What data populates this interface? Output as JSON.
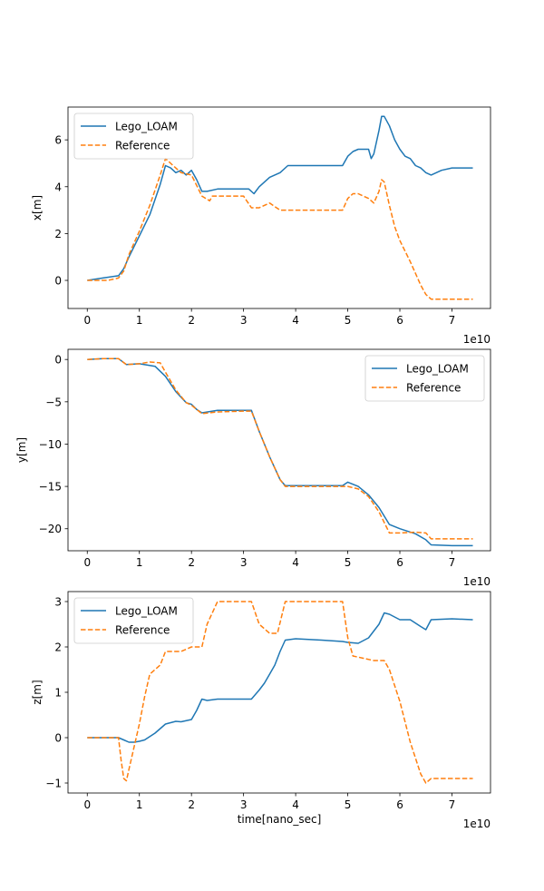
{
  "chart_data": [
    {
      "type": "line",
      "ylabel": "x[m]",
      "xlabel": "",
      "offset_text": "1e10",
      "xlim": [
        -0.37,
        7.74
      ],
      "ylim": [
        -1.2,
        7.4
      ],
      "xticks": [
        0,
        1,
        2,
        3,
        4,
        5,
        6,
        7
      ],
      "yticks": [
        0,
        2,
        4,
        6
      ],
      "legend": "upper-left",
      "series": [
        {
          "name": "Lego_LOAM",
          "color": "#1f77b4",
          "dash": "solid",
          "x": [
            0,
            0.3,
            0.6,
            0.7,
            0.8,
            1.0,
            1.2,
            1.4,
            1.5,
            1.6,
            1.7,
            1.8,
            1.9,
            2.0,
            2.1,
            2.2,
            2.3,
            2.5,
            2.8,
            3.1,
            3.2,
            3.3,
            3.5,
            3.7,
            3.85,
            4.0,
            4.3,
            4.6,
            4.9,
            5.0,
            5.1,
            5.2,
            5.3,
            5.4,
            5.45,
            5.5,
            5.6,
            5.65,
            5.7,
            5.8,
            5.9,
            6.0,
            6.1,
            6.2,
            6.3,
            6.4,
            6.5,
            6.6,
            6.8,
            7.0,
            7.2,
            7.4
          ],
          "y": [
            0,
            0.1,
            0.2,
            0.5,
            1.0,
            1.9,
            2.8,
            4.1,
            4.9,
            4.8,
            4.6,
            4.7,
            4.5,
            4.7,
            4.3,
            3.8,
            3.8,
            3.9,
            3.9,
            3.9,
            3.7,
            4.0,
            4.4,
            4.6,
            4.9,
            4.9,
            4.9,
            4.9,
            4.9,
            5.3,
            5.5,
            5.6,
            5.6,
            5.6,
            5.2,
            5.4,
            6.4,
            7.0,
            7.0,
            6.6,
            6.0,
            5.6,
            5.3,
            5.2,
            4.9,
            4.8,
            4.6,
            4.5,
            4.7,
            4.8,
            4.8,
            4.8
          ]
        },
        {
          "name": "Reference",
          "color": "#ff7f0e",
          "dash": "dashed",
          "x": [
            0,
            0.4,
            0.6,
            0.7,
            0.8,
            1.0,
            1.2,
            1.4,
            1.5,
            1.6,
            1.8,
            2.0,
            2.2,
            2.35,
            2.4,
            2.6,
            3.0,
            3.15,
            3.3,
            3.5,
            3.7,
            4.0,
            4.5,
            4.9,
            5.0,
            5.1,
            5.2,
            5.3,
            5.4,
            5.5,
            5.6,
            5.65,
            5.7,
            5.8,
            5.9,
            6.0,
            6.2,
            6.4,
            6.5,
            6.6,
            7.0,
            7.4
          ],
          "y": [
            0,
            0,
            0.1,
            0.4,
            1.1,
            2.1,
            3.2,
            4.5,
            5.2,
            5.0,
            4.6,
            4.5,
            3.6,
            3.4,
            3.6,
            3.6,
            3.6,
            3.1,
            3.1,
            3.3,
            3.0,
            3.0,
            3.0,
            3.0,
            3.5,
            3.7,
            3.7,
            3.6,
            3.5,
            3.3,
            3.8,
            4.3,
            4.2,
            3.2,
            2.3,
            1.7,
            0.8,
            -0.2,
            -0.6,
            -0.8,
            -0.8,
            -0.8
          ]
        }
      ]
    },
    {
      "type": "line",
      "ylabel": "y[m]",
      "xlabel": "",
      "offset_text": "1e10",
      "xlim": [
        -0.37,
        7.74
      ],
      "ylim": [
        -22.6,
        1.2
      ],
      "xticks": [
        0,
        1,
        2,
        3,
        4,
        5,
        6,
        7
      ],
      "yticks": [
        0,
        -5,
        -10,
        -15,
        -20
      ],
      "legend": "upper-right",
      "series": [
        {
          "name": "Lego_LOAM",
          "color": "#1f77b4",
          "dash": "solid",
          "x": [
            0,
            0.3,
            0.6,
            0.75,
            1.0,
            1.3,
            1.5,
            1.7,
            1.9,
            2.0,
            2.1,
            2.2,
            2.5,
            3.0,
            3.15,
            3.3,
            3.5,
            3.7,
            3.8,
            4.0,
            4.5,
            4.9,
            5.0,
            5.2,
            5.4,
            5.6,
            5.8,
            6.0,
            6.3,
            6.5,
            6.6,
            7.0,
            7.4
          ],
          "y": [
            0,
            0.1,
            0.1,
            -0.6,
            -0.5,
            -0.8,
            -2.0,
            -3.8,
            -5.1,
            -5.3,
            -5.9,
            -6.3,
            -6.0,
            -6.0,
            -6.0,
            -8.5,
            -11.5,
            -14.2,
            -14.9,
            -14.9,
            -14.9,
            -14.9,
            -14.5,
            -15.0,
            -16.0,
            -17.5,
            -19.5,
            -20.0,
            -20.6,
            -21.3,
            -21.9,
            -22.0,
            -22.0
          ]
        },
        {
          "name": "Reference",
          "color": "#ff7f0e",
          "dash": "dashed",
          "x": [
            0,
            0.3,
            0.6,
            0.75,
            1.0,
            1.2,
            1.4,
            1.5,
            1.7,
            1.9,
            2.0,
            2.1,
            2.2,
            2.5,
            3.0,
            3.15,
            3.3,
            3.5,
            3.7,
            3.8,
            4.0,
            4.5,
            5.0,
            5.2,
            5.4,
            5.6,
            5.8,
            6.0,
            6.3,
            6.5,
            6.6,
            7.0,
            7.4
          ],
          "y": [
            0,
            0.1,
            0.1,
            -0.6,
            -0.5,
            -0.3,
            -0.4,
            -1.5,
            -3.6,
            -5.1,
            -5.4,
            -5.9,
            -6.4,
            -6.2,
            -6.1,
            -6.1,
            -8.5,
            -11.5,
            -14.2,
            -15.0,
            -15.0,
            -15.0,
            -15.0,
            -15.3,
            -16.2,
            -18.0,
            -20.5,
            -20.5,
            -20.4,
            -20.5,
            -21.2,
            -21.2,
            -21.2
          ]
        }
      ]
    },
    {
      "type": "line",
      "ylabel": "z[m]",
      "xlabel": "time[nano_sec]",
      "offset_text": "1e10",
      "xlim": [
        -0.37,
        7.74
      ],
      "ylim": [
        -1.22,
        3.22
      ],
      "xticks": [
        0,
        1,
        2,
        3,
        4,
        5,
        6,
        7
      ],
      "yticks": [
        -1,
        0,
        1,
        2,
        3
      ],
      "legend": "upper-left",
      "series": [
        {
          "name": "Lego_LOAM",
          "color": "#1f77b4",
          "dash": "solid",
          "x": [
            0,
            0.5,
            0.6,
            0.7,
            0.8,
            0.9,
            1.0,
            1.1,
            1.3,
            1.5,
            1.7,
            1.8,
            2.0,
            2.1,
            2.2,
            2.3,
            2.5,
            3.0,
            3.15,
            3.3,
            3.4,
            3.5,
            3.6,
            3.7,
            3.8,
            4.0,
            4.5,
            4.9,
            5.0,
            5.2,
            5.4,
            5.6,
            5.7,
            5.8,
            6.0,
            6.2,
            6.4,
            6.5,
            6.6,
            7.0,
            7.4
          ],
          "y": [
            0,
            0,
            0,
            -0.05,
            -0.1,
            -0.1,
            -0.08,
            -0.05,
            0.1,
            0.3,
            0.36,
            0.35,
            0.4,
            0.6,
            0.85,
            0.82,
            0.85,
            0.85,
            0.85,
            1.05,
            1.2,
            1.4,
            1.6,
            1.9,
            2.15,
            2.18,
            2.15,
            2.12,
            2.1,
            2.08,
            2.2,
            2.5,
            2.75,
            2.72,
            2.6,
            2.6,
            2.45,
            2.38,
            2.6,
            2.62,
            2.6
          ]
        },
        {
          "name": "Reference",
          "color": "#ff7f0e",
          "dash": "dashed",
          "x": [
            0,
            0.5,
            0.6,
            0.65,
            0.7,
            0.75,
            0.8,
            1.0,
            1.1,
            1.2,
            1.4,
            1.5,
            1.6,
            1.8,
            2.0,
            2.2,
            2.3,
            2.5,
            3.0,
            3.15,
            3.3,
            3.5,
            3.65,
            3.8,
            4.0,
            4.9,
            5.0,
            5.1,
            5.3,
            5.5,
            5.7,
            5.8,
            6.0,
            6.2,
            6.4,
            6.5,
            6.6,
            7.0,
            7.4
          ],
          "y": [
            0,
            0,
            0,
            -0.5,
            -0.9,
            -0.95,
            -0.7,
            0.3,
            0.9,
            1.4,
            1.6,
            1.9,
            1.9,
            1.9,
            2.0,
            2.0,
            2.5,
            3.0,
            3.0,
            3.0,
            2.5,
            2.3,
            2.3,
            3.0,
            3.0,
            3.0,
            2.2,
            1.8,
            1.75,
            1.7,
            1.7,
            1.5,
            0.8,
            -0.1,
            -0.8,
            -1.0,
            -0.9,
            -0.9,
            -0.9
          ]
        }
      ]
    }
  ]
}
